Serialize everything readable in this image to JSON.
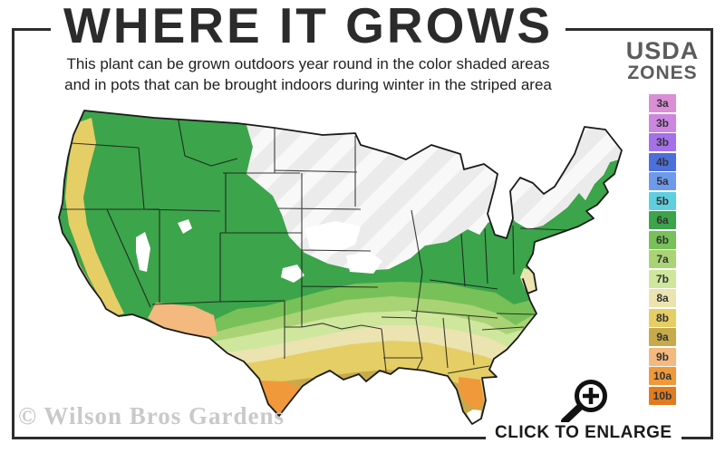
{
  "header": {
    "title": "WHERE IT GROWS",
    "subtitle_line1": "This plant can be grown outdoors year round in the color shaded areas",
    "subtitle_line2": "and in pots that can be brought indoors during winter in the striped area"
  },
  "legend": {
    "title_line1": "USDA",
    "title_line2": "ZONES",
    "zones": [
      {
        "label": "3a",
        "color": "#d98ed5"
      },
      {
        "label": "3b",
        "color": "#cd86e0"
      },
      {
        "label": "3b",
        "color": "#a471e8"
      },
      {
        "label": "4b",
        "color": "#4c6fd9"
      },
      {
        "label": "5a",
        "color": "#6d9aeb"
      },
      {
        "label": "5b",
        "color": "#5ecfde"
      },
      {
        "label": "6a",
        "color": "#3ca44a"
      },
      {
        "label": "6b",
        "color": "#77c158"
      },
      {
        "label": "7a",
        "color": "#a9d375"
      },
      {
        "label": "7b",
        "color": "#cfe69d"
      },
      {
        "label": "8a",
        "color": "#ebe4b0"
      },
      {
        "label": "8b",
        "color": "#e5ce65"
      },
      {
        "label": "9a",
        "color": "#c7aa4b"
      },
      {
        "label": "9b",
        "color": "#f3b97e"
      },
      {
        "label": "10a",
        "color": "#f0993b"
      },
      {
        "label": "10b",
        "color": "#e07c20"
      }
    ]
  },
  "map": {
    "watermark": "© Wilson Bros Gardens",
    "striped_base_color": "#ebebeb",
    "stripe_color": "#f8f8f8",
    "not_hardy_color": "#ffffff",
    "outline_color": "#1a1a1a"
  },
  "footer": {
    "enlarge_label": "CLICK TO ENLARGE",
    "magnifier_icon": "zoom-in-icon"
  },
  "frame_color": "#2d2d2d"
}
